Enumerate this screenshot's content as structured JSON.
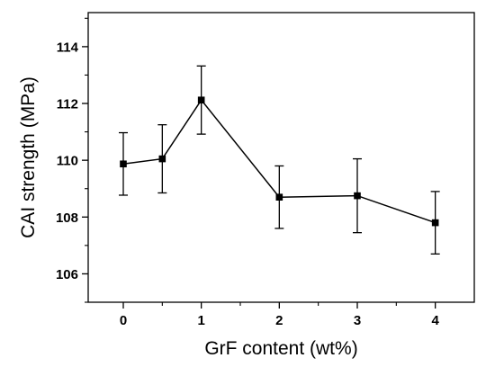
{
  "chart_data": {
    "type": "line",
    "title": "",
    "xlabel": "GrF content (wt%)",
    "ylabel": "CAI strength (MPa)",
    "xlim": [
      -0.45,
      4.5
    ],
    "ylim": [
      105,
      115.2
    ],
    "x_ticks": [
      0,
      1,
      2,
      3,
      4
    ],
    "x_tick_labels": [
      "0",
      "1",
      "2",
      "3",
      "4"
    ],
    "y_ticks": [
      106,
      108,
      110,
      112,
      114
    ],
    "y_tick_labels": [
      "106",
      "108",
      "110",
      "112",
      "114"
    ],
    "grid": false,
    "legend": "none",
    "marker": "square",
    "line_color": "#000000",
    "series": [
      {
        "x": [
          0,
          0.5,
          1,
          2,
          3,
          4
        ],
        "y": [
          109.87,
          110.05,
          112.12,
          108.7,
          108.75,
          107.8
        ],
        "error": [
          1.1,
          1.2,
          1.2,
          1.1,
          1.3,
          1.1
        ]
      }
    ]
  }
}
